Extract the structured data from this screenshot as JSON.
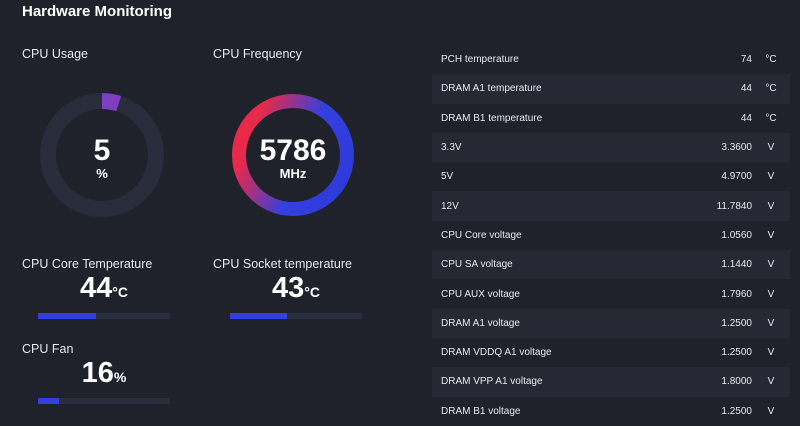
{
  "title": "Hardware Monitoring",
  "cpu_usage": {
    "label": "CPU Usage",
    "value": "5",
    "unit": "%",
    "percent": 5
  },
  "cpu_frequency": {
    "label": "CPU Frequency",
    "value": "5786",
    "unit": "MHz"
  },
  "cpu_core_temp": {
    "label": "CPU Core Temperature",
    "value": "44",
    "unit": "°C",
    "percent": 44
  },
  "cpu_socket_temp": {
    "label": "CPU Socket temperature",
    "value": "43",
    "unit": "°C",
    "percent": 43
  },
  "cpu_fan": {
    "label": "CPU Fan",
    "value": "16",
    "unit": "%",
    "percent": 16
  },
  "colors": {
    "accent": "#3340e0",
    "gradient_start": "#e8294a",
    "usage_fill": "#7b3fc0"
  },
  "sensors": [
    {
      "name": "PCH temperature",
      "value": "74",
      "unit": "°C"
    },
    {
      "name": "DRAM A1 temperature",
      "value": "44",
      "unit": "°C"
    },
    {
      "name": "DRAM B1 temperature",
      "value": "44",
      "unit": "°C"
    },
    {
      "name": "3.3V",
      "value": "3.3600",
      "unit": "V"
    },
    {
      "name": "5V",
      "value": "4.9700",
      "unit": "V"
    },
    {
      "name": "12V",
      "value": "11.7840",
      "unit": "V"
    },
    {
      "name": "CPU Core voltage",
      "value": "1.0560",
      "unit": "V"
    },
    {
      "name": "CPU SA voltage",
      "value": "1.1440",
      "unit": "V"
    },
    {
      "name": "CPU AUX voltage",
      "value": "1.7960",
      "unit": "V"
    },
    {
      "name": "DRAM A1 voltage",
      "value": "1.2500",
      "unit": "V"
    },
    {
      "name": "DRAM VDDQ A1 voltage",
      "value": "1.2500",
      "unit": "V"
    },
    {
      "name": "DRAM VPP A1 voltage",
      "value": "1.8000",
      "unit": "V"
    },
    {
      "name": "DRAM B1 voltage",
      "value": "1.2500",
      "unit": "V"
    }
  ]
}
